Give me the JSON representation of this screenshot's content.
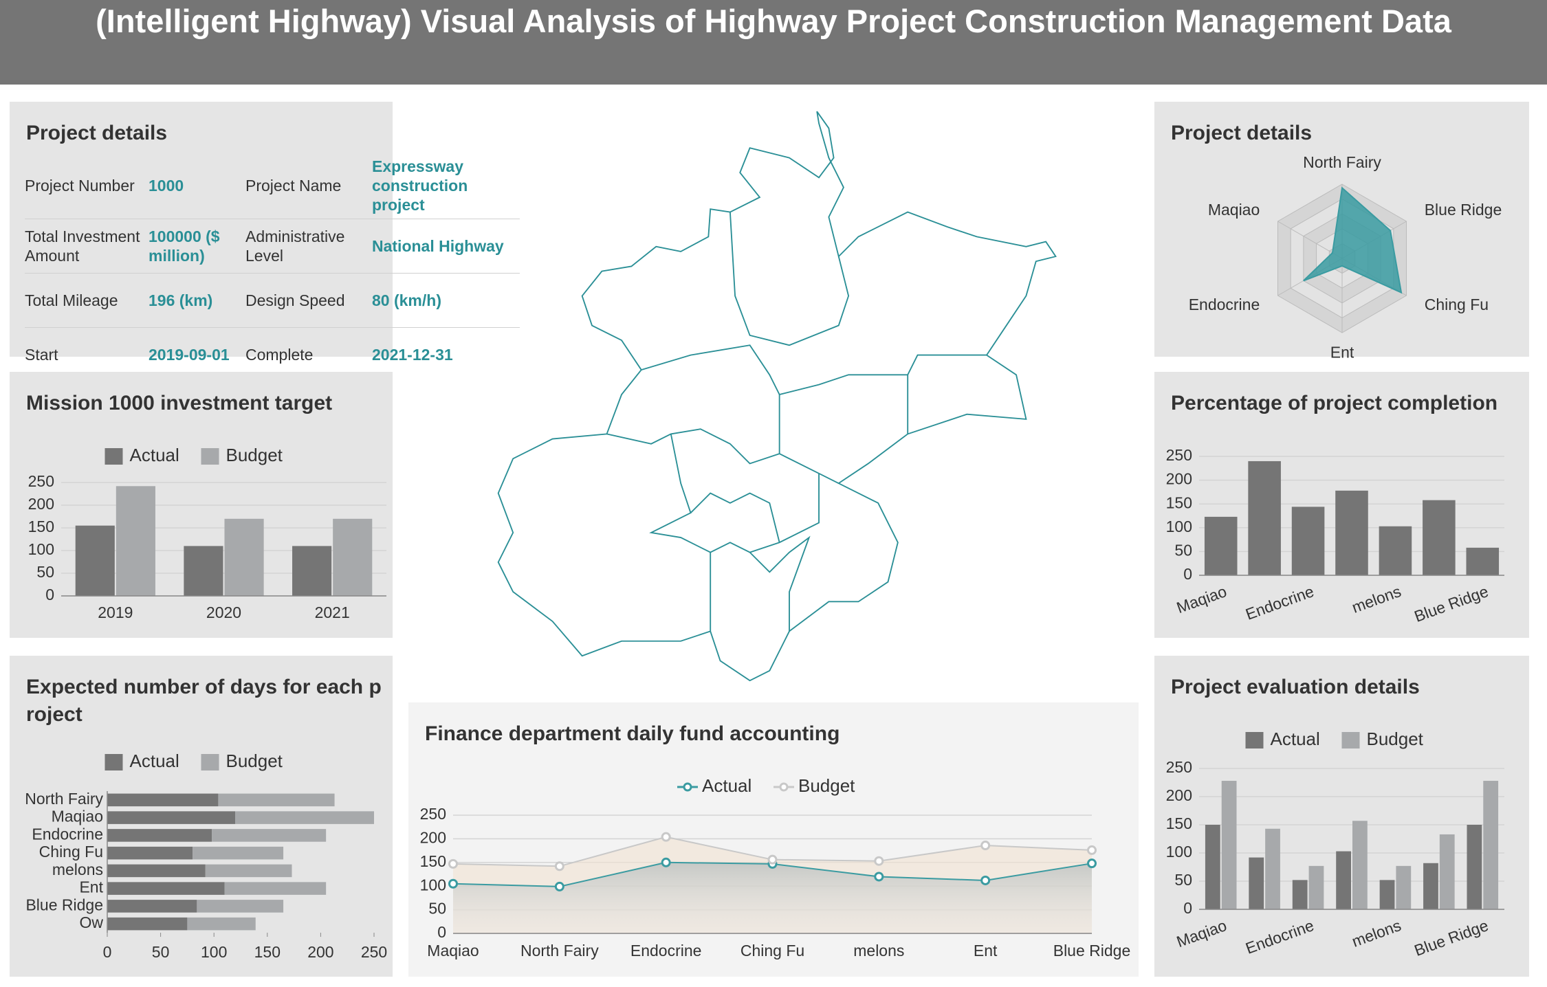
{
  "header": {
    "title": "(Intelligent Highway) Visual Analysis of Highway Project Construction Management Data"
  },
  "details": {
    "title": "Project details",
    "rows": [
      [
        "Project Number",
        "1000",
        "Project Name",
        "Expressway construction project"
      ],
      [
        "Total Investment Amount",
        "100000 ($ million)",
        "Administrative Level",
        "National Highway"
      ],
      [
        "Total Mileage",
        "196 (km)",
        "Design Speed",
        "80 (km/h)"
      ],
      [
        "Start",
        "2019-09-01",
        "Complete",
        "2021-12-31"
      ]
    ]
  },
  "chart_data": [
    {
      "type": "bar",
      "title": "Mission 1000 investment target",
      "categories": [
        "2019",
        "2020",
        "2021"
      ],
      "series": [
        {
          "name": "Actual",
          "color": "#757575",
          "values": [
            155,
            110,
            110
          ]
        },
        {
          "name": "Budget",
          "color": "#a7a9ab",
          "values": [
            242,
            170,
            170
          ]
        }
      ],
      "ylim": [
        0,
        250
      ],
      "yticks": [
        0,
        50,
        100,
        150,
        200,
        250
      ],
      "grid": true
    },
    {
      "type": "hbar",
      "title": "Expected number of days for each project",
      "stacked": true,
      "categories": [
        "North Fairy",
        "Maqiao",
        "Endocrine",
        "Ching Fu",
        "melons",
        "Ent",
        "Blue Ridge",
        "Ow"
      ],
      "series": [
        {
          "name": "Actual",
          "color": "#757575",
          "values": [
            104,
            120,
            98,
            80,
            92,
            110,
            84,
            75
          ]
        },
        {
          "name": "Budget",
          "color": "#a7a9ab",
          "values": [
            109,
            130,
            107,
            85,
            81,
            95,
            81,
            64
          ]
        }
      ],
      "xlim": [
        0,
        250
      ],
      "xticks": [
        0,
        50,
        100,
        150,
        200,
        250
      ]
    },
    {
      "type": "radar",
      "title": "Project details",
      "indicators": [
        "North Fairy",
        "Blue Ridge",
        "Ching Fu",
        "Ent",
        "Endocrine",
        "Maqiao"
      ],
      "values": [
        95,
        75,
        92,
        10,
        60,
        15
      ],
      "color": "#3a9ba1",
      "rlim": [
        0,
        100
      ]
    },
    {
      "type": "bar",
      "title": "Percentage of project completion",
      "categories": [
        "Maqiao",
        null,
        "Endocrine",
        null,
        "melons",
        null,
        "Blue Ridge"
      ],
      "values": [
        123,
        240,
        144,
        178,
        103,
        158,
        58
      ],
      "color": "#757575",
      "ylim": [
        0,
        250
      ],
      "yticks": [
        0,
        50,
        100,
        150,
        200,
        250
      ],
      "grid": true
    },
    {
      "type": "line",
      "title": "Finance department daily fund accounting",
      "categories": [
        "Maqiao",
        "North Fairy",
        "Endocrine",
        "Ching Fu",
        "melons",
        "Ent",
        "Blue Ridge"
      ],
      "series": [
        {
          "name": "Actual",
          "color": "#3a9ba1",
          "values": [
            105,
            99,
            150,
            147,
            120,
            112,
            148
          ]
        },
        {
          "name": "Budget",
          "color": "#c8c8c8",
          "values": [
            147,
            142,
            204,
            156,
            153,
            186,
            176
          ]
        }
      ],
      "ylim": [
        0,
        250
      ],
      "yticks": [
        0,
        50,
        100,
        150,
        200,
        250
      ],
      "grid": true,
      "area": true
    },
    {
      "type": "bar",
      "title": "Project evaluation details",
      "categories": [
        "Maqiao",
        null,
        "Endocrine",
        null,
        "melons",
        null,
        "Blue Ridge"
      ],
      "series": [
        {
          "name": "Actual",
          "color": "#757575",
          "values": [
            150,
            92,
            52,
            103,
            52,
            82,
            150
          ]
        },
        {
          "name": "Budget",
          "color": "#a7a9ab",
          "values": [
            228,
            143,
            77,
            157,
            77,
            133,
            228
          ]
        }
      ],
      "ylim": [
        0,
        250
      ],
      "yticks": [
        0,
        50,
        100,
        150,
        200,
        250
      ],
      "grid": true
    }
  ]
}
